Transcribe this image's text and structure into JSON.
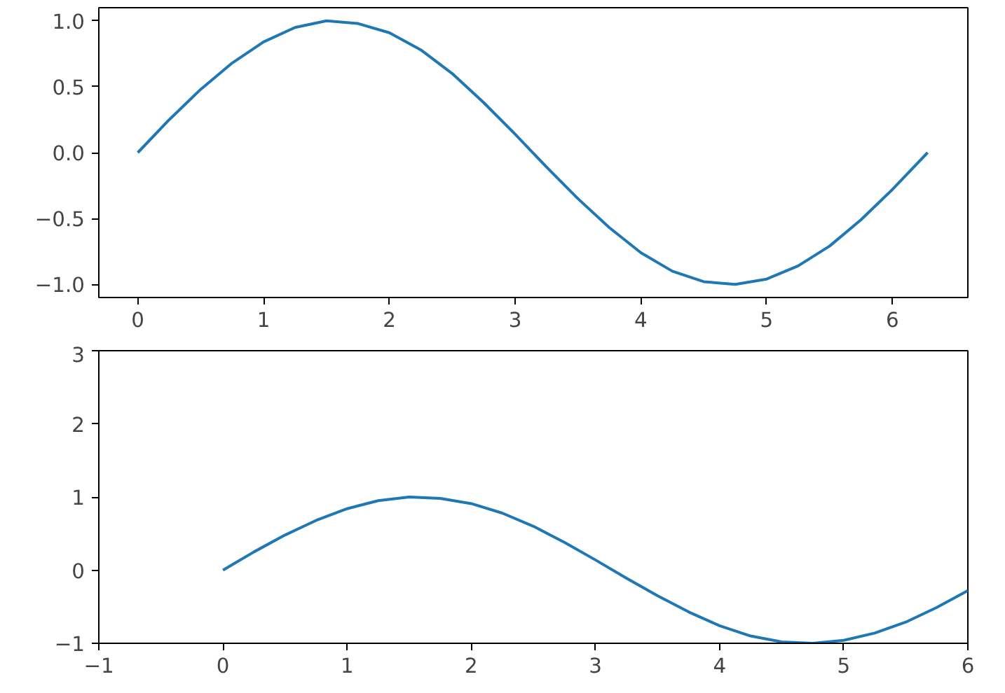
{
  "chart_data": [
    {
      "type": "line",
      "x": [
        0,
        0.25,
        0.5,
        0.75,
        1,
        1.25,
        1.5,
        1.75,
        2,
        2.25,
        2.5,
        2.75,
        3,
        3.25,
        3.5,
        3.75,
        4,
        4.25,
        4.5,
        4.75,
        5,
        5.25,
        5.5,
        5.75,
        6,
        6.28
      ],
      "series": [
        {
          "color": "#1f77b4",
          "values": [
            0,
            0.25,
            0.48,
            0.68,
            0.84,
            0.95,
            1.0,
            0.98,
            0.91,
            0.78,
            0.6,
            0.38,
            0.14,
            -0.11,
            -0.35,
            -0.57,
            -0.76,
            -0.9,
            -0.98,
            -1.0,
            -0.96,
            -0.86,
            -0.71,
            -0.51,
            -0.28,
            0
          ]
        }
      ],
      "xlim": [
        -0.31,
        6.6
      ],
      "ylim": [
        -1.1,
        1.1
      ],
      "xticks": [
        0,
        1,
        2,
        3,
        4,
        5,
        6
      ],
      "yticks": [
        {
          "value": -1,
          "label": "−1.0"
        },
        {
          "value": -0.5,
          "label": "−0.5"
        },
        {
          "value": 0,
          "label": "0.0"
        },
        {
          "value": 0.5,
          "label": "0.5"
        },
        {
          "value": 1,
          "label": "1.0"
        }
      ]
    },
    {
      "type": "line",
      "x": [
        0,
        0.25,
        0.5,
        0.75,
        1,
        1.25,
        1.5,
        1.75,
        2,
        2.25,
        2.5,
        2.75,
        3,
        3.25,
        3.5,
        3.75,
        4,
        4.25,
        4.5,
        4.75,
        5,
        5.25,
        5.5,
        5.75,
        6
      ],
      "series": [
        {
          "color": "#1f77b4",
          "values": [
            0,
            0.25,
            0.48,
            0.68,
            0.84,
            0.95,
            1.0,
            0.98,
            0.91,
            0.78,
            0.6,
            0.38,
            0.14,
            -0.11,
            -0.35,
            -0.57,
            -0.76,
            -0.9,
            -0.98,
            -1.0,
            -0.96,
            -0.86,
            -0.71,
            -0.51,
            -0.28
          ]
        }
      ],
      "xlim": [
        -1,
        6
      ],
      "ylim": [
        -1,
        3
      ],
      "xticks": [
        {
          "value": -1,
          "label": "−1"
        },
        0,
        1,
        2,
        3,
        4,
        5,
        6
      ],
      "yticks": [
        {
          "value": -1,
          "label": "−1"
        },
        0,
        1,
        2,
        3
      ]
    }
  ]
}
